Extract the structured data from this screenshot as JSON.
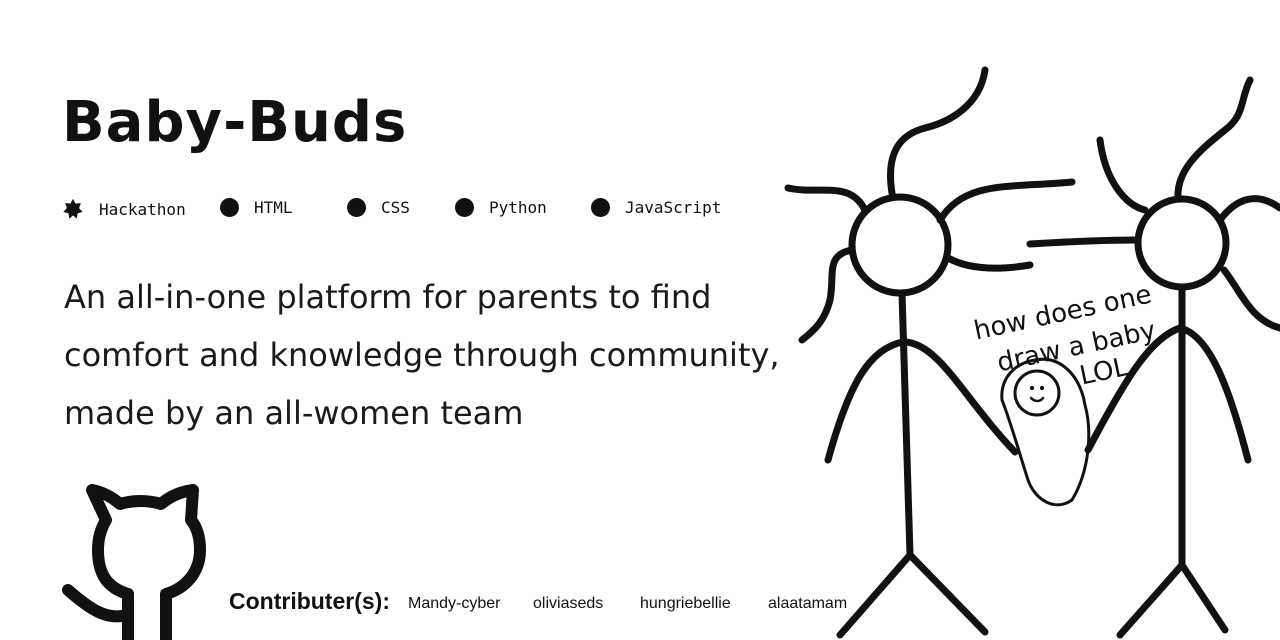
{
  "project": {
    "title": "Baby-Buds",
    "description": "An all-in-one platform for parents to find comfort and knowledge through community, made by an all-women team"
  },
  "tags": [
    {
      "label": "Hackathon",
      "icon": "badge-star-icon"
    },
    {
      "label": "HTML",
      "icon": "dot-icon"
    },
    {
      "label": "CSS",
      "icon": "dot-icon"
    },
    {
      "label": "Python",
      "icon": "dot-icon"
    },
    {
      "label": "JavaScript",
      "icon": "dot-icon"
    }
  ],
  "contributors": {
    "label": "Contributer(s)",
    "names": [
      "Mandy-cyber",
      "oliviaseds",
      "hungriebellie",
      "alaatamam"
    ]
  },
  "illustration": {
    "caption_lines": [
      "how does one",
      "draw a baby",
      "LOL"
    ]
  },
  "icons": {
    "github": "github-octocat-icon"
  },
  "colors": {
    "background": "#ffffff",
    "ink": "#111111"
  }
}
